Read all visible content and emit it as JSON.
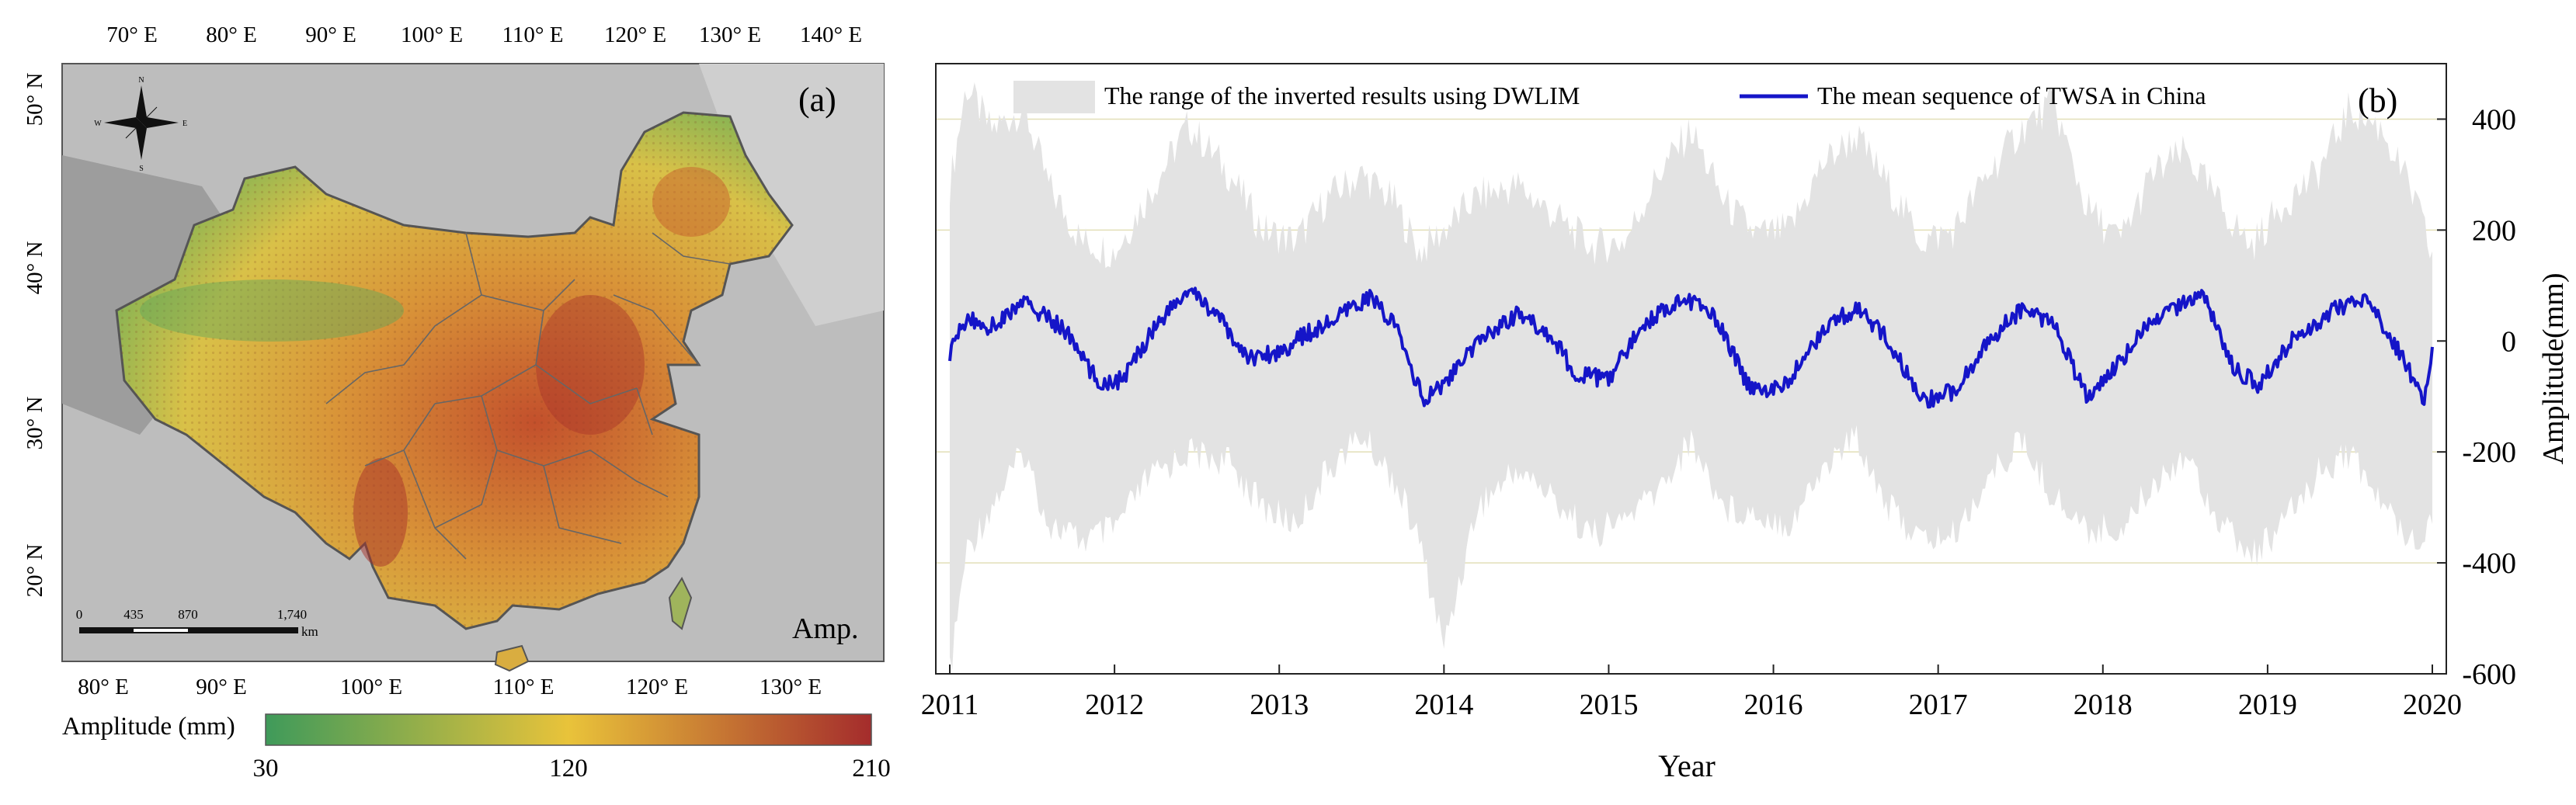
{
  "panel_a": {
    "panel_label": "(a)",
    "corner_label": "Amp.",
    "top_lon_ticks": [
      "70° E",
      "80° E",
      "90° E",
      "100° E",
      "110° E",
      "120° E",
      "130° E",
      "140° E"
    ],
    "bottom_lon_ticks": [
      "80° E",
      "90° E",
      "100° E",
      "110° E",
      "120° E",
      "130° E"
    ],
    "lat_ticks": [
      "50° N",
      "40° N",
      "30° N",
      "20° N"
    ],
    "scale_bar": {
      "ticks": [
        "0",
        "435",
        "870",
        "1,740"
      ],
      "unit": "km"
    },
    "compass": {
      "n": "N",
      "s": "S",
      "e": "E",
      "w": "W"
    },
    "colorbar": {
      "title": "Amplitude (mm)",
      "tick_labels": [
        "30",
        "120",
        "210"
      ],
      "min": 30,
      "mid": 120,
      "max": 210,
      "colors": [
        "#3f9a5a",
        "#e9c33a",
        "#a42c2c"
      ]
    }
  },
  "chart_data": {
    "type": "area",
    "panel_label": "(b)",
    "xlabel": "Year",
    "ylabel": "Amplitude(mm)",
    "x_ticks": [
      "2011",
      "2012",
      "2013",
      "2014",
      "2015",
      "2016",
      "2017",
      "2018",
      "2019",
      "2020"
    ],
    "xlim": [
      2011,
      2020
    ],
    "y_ticks": [
      "400",
      "200",
      "0",
      "-200",
      "-400",
      "-600"
    ],
    "ylim": [
      -600,
      500
    ],
    "gridlines_at": [
      400,
      200,
      -200,
      -400
    ],
    "legend": {
      "position": "top",
      "range_label": "The range of the inverted results using DWLIM",
      "mean_label": "The mean sequence of TWSA in China"
    },
    "colors": {
      "range_fill": "#e3e3e3",
      "mean_line": "#1515c8",
      "grid": "#e2dfb8"
    },
    "series": [
      {
        "name": "The mean sequence of TWSA in China",
        "x": [
          2011.0,
          2011.1,
          2011.25,
          2011.45,
          2011.7,
          2011.9,
          2012.05,
          2012.25,
          2012.45,
          2012.6,
          2012.8,
          2013.0,
          2013.15,
          2013.35,
          2013.55,
          2013.7,
          2013.88,
          2014.05,
          2014.25,
          2014.45,
          2014.65,
          2014.8,
          2015.0,
          2015.2,
          2015.45,
          2015.65,
          2015.85,
          2016.05,
          2016.3,
          2016.5,
          2016.7,
          2016.9,
          2017.1,
          2017.3,
          2017.5,
          2017.7,
          2017.9,
          2018.1,
          2018.25,
          2018.45,
          2018.6,
          2018.8,
          2018.95,
          2019.15,
          2019.4,
          2019.6,
          2019.8,
          2019.95,
          2020.0
        ],
        "values": [
          -20,
          40,
          25,
          70,
          20,
          -75,
          -70,
          30,
          90,
          55,
          -30,
          -20,
          10,
          40,
          80,
          30,
          -110,
          -60,
          10,
          50,
          10,
          -60,
          -70,
          30,
          80,
          40,
          -80,
          -90,
          20,
          60,
          0,
          -110,
          -90,
          0,
          55,
          35,
          -100,
          -40,
          20,
          60,
          90,
          -50,
          -80,
          0,
          55,
          75,
          -20,
          -110,
          -5
        ]
      },
      {
        "name": "The range of the inverted results using DWLIM",
        "x": [
          2011.0,
          2011.1,
          2011.25,
          2011.45,
          2011.6,
          2011.8,
          2012.0,
          2012.2,
          2012.45,
          2012.7,
          2012.9,
          2013.1,
          2013.3,
          2013.5,
          2013.7,
          2013.85,
          2014.0,
          2014.2,
          2014.45,
          2014.65,
          2014.9,
          2015.1,
          2015.3,
          2015.5,
          2015.7,
          2015.9,
          2016.1,
          2016.3,
          2016.5,
          2016.7,
          2016.9,
          2017.1,
          2017.3,
          2017.5,
          2017.7,
          2017.9,
          2018.1,
          2018.3,
          2018.5,
          2018.7,
          2018.9,
          2019.1,
          2019.3,
          2019.5,
          2019.7,
          2019.9,
          2020.0
        ],
        "upper": [
          280,
          460,
          380,
          420,
          280,
          180,
          160,
          260,
          390,
          300,
          200,
          180,
          260,
          300,
          250,
          160,
          200,
          260,
          280,
          230,
          170,
          180,
          300,
          380,
          250,
          190,
          200,
          320,
          370,
          280,
          180,
          200,
          300,
          380,
          430,
          240,
          180,
          300,
          340,
          250,
          170,
          250,
          300,
          420,
          380,
          250,
          150
        ],
        "lower": [
          -600,
          -380,
          -300,
          -200,
          -330,
          -360,
          -340,
          -250,
          -200,
          -220,
          -300,
          -330,
          -230,
          -170,
          -250,
          -360,
          -550,
          -300,
          -230,
          -280,
          -350,
          -320,
          -270,
          -180,
          -300,
          -310,
          -330,
          -230,
          -170,
          -300,
          -360,
          -350,
          -250,
          -180,
          -280,
          -340,
          -340,
          -260,
          -200,
          -320,
          -390,
          -330,
          -240,
          -200,
          -300,
          -360,
          -320
        ]
      }
    ]
  }
}
